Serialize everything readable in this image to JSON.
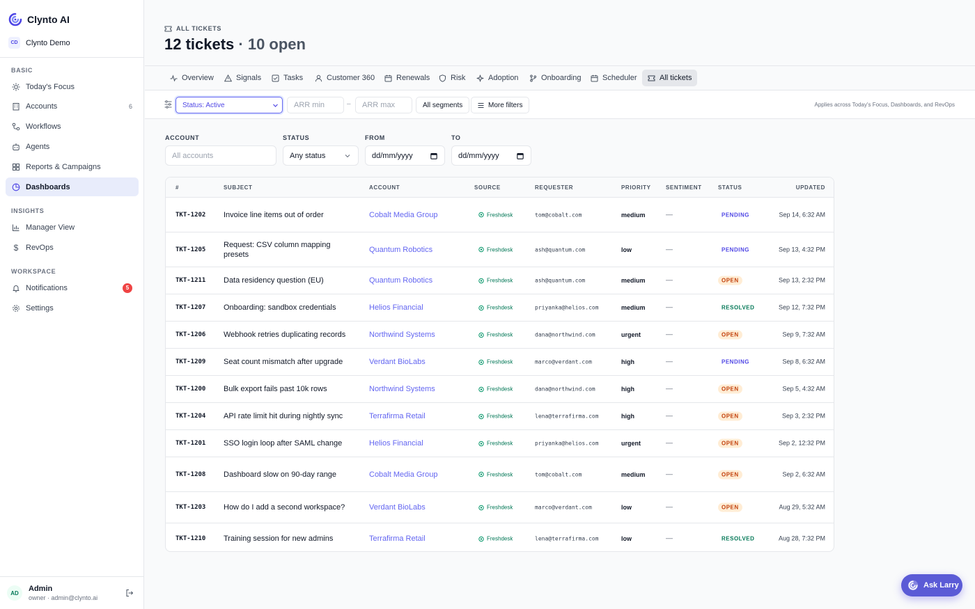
{
  "brand": {
    "name": "Clynto AI"
  },
  "workspace": {
    "initials": "CD",
    "name": "Clynto Demo"
  },
  "sidebar": {
    "sections": {
      "basic": "BASIC",
      "insights": "INSIGHTS",
      "workspace": "WORKSPACE"
    },
    "items": {
      "todays_focus": "Today's Focus",
      "accounts": "Accounts",
      "accounts_count": "6",
      "workflows": "Workflows",
      "agents": "Agents",
      "reports": "Reports & Campaigns",
      "dashboards": "Dashboards",
      "manager_view": "Manager View",
      "revops": "RevOps",
      "notifications": "Notifications",
      "notifications_count": "5",
      "settings": "Settings"
    }
  },
  "user": {
    "initials": "AD",
    "name": "Admin",
    "sub": "owner · admin@clynto.ai"
  },
  "header": {
    "eyebrow": "ALL TICKETS",
    "title_count": "12 tickets",
    "title_open": " · 10 open"
  },
  "tabs": [
    "Overview",
    "Signals",
    "Tasks",
    "Customer 360",
    "Renewals",
    "Risk",
    "Adoption",
    "Onboarding",
    "Scheduler",
    "All tickets"
  ],
  "filterbar": {
    "status": "Status: Active",
    "arr_min": "ARR min",
    "dash": "–",
    "arr_max": "ARR max",
    "segments": "All segments",
    "more": "More filters",
    "note": "Applies across Today's Focus, Dashboards, and RevOps"
  },
  "filters": {
    "account_label": "ACCOUNT",
    "account_placeholder": "All accounts",
    "status_label": "STATUS",
    "status_value": "Any status",
    "from_label": "FROM",
    "from_value": "dd/mm/yyyy",
    "to_label": "TO",
    "to_value": "dd/mm/yyyy"
  },
  "table": {
    "columns": [
      "#",
      "SUBJECT",
      "ACCOUNT",
      "SOURCE",
      "REQUESTER",
      "PRIORITY",
      "SENTIMENT",
      "STATUS",
      "UPDATED"
    ],
    "rows": [
      {
        "id": "TKT-1202",
        "subject": "Invoice line items out of order",
        "account": "Cobalt Media Group",
        "source": "Freshdesk",
        "requester": "tom@cobalt.com",
        "priority": "medium",
        "sentiment": "—",
        "status": "PENDING",
        "updated": "Sep 14, 6:32 AM"
      },
      {
        "id": "TKT-1205",
        "subject": "Request: CSV column mapping presets",
        "account": "Quantum Robotics",
        "source": "Freshdesk",
        "requester": "ash@quantum.com",
        "priority": "low",
        "sentiment": "—",
        "status": "PENDING",
        "updated": "Sep 13, 4:32 PM"
      },
      {
        "id": "TKT-1211",
        "subject": "Data residency question (EU)",
        "account": "Quantum Robotics",
        "source": "Freshdesk",
        "requester": "ash@quantum.com",
        "priority": "medium",
        "sentiment": "—",
        "status": "OPEN",
        "updated": "Sep 13, 2:32 PM"
      },
      {
        "id": "TKT-1207",
        "subject": "Onboarding: sandbox credentials",
        "account": "Helios Financial",
        "source": "Freshdesk",
        "requester": "priyanka@helios.com",
        "priority": "medium",
        "sentiment": "—",
        "status": "RESOLVED",
        "updated": "Sep 12, 7:32 PM"
      },
      {
        "id": "TKT-1206",
        "subject": "Webhook retries duplicating records",
        "account": "Northwind Systems",
        "source": "Freshdesk",
        "requester": "dana@northwind.com",
        "priority": "urgent",
        "sentiment": "—",
        "status": "OPEN",
        "updated": "Sep 9, 7:32 AM"
      },
      {
        "id": "TKT-1209",
        "subject": "Seat count mismatch after upgrade",
        "account": "Verdant BioLabs",
        "source": "Freshdesk",
        "requester": "marco@verdant.com",
        "priority": "high",
        "sentiment": "—",
        "status": "PENDING",
        "updated": "Sep 8, 6:32 AM"
      },
      {
        "id": "TKT-1200",
        "subject": "Bulk export fails past 10k rows",
        "account": "Northwind Systems",
        "source": "Freshdesk",
        "requester": "dana@northwind.com",
        "priority": "high",
        "sentiment": "—",
        "status": "OPEN",
        "updated": "Sep 5, 4:32 AM"
      },
      {
        "id": "TKT-1204",
        "subject": "API rate limit hit during nightly sync",
        "account": "Terrafirma Retail",
        "source": "Freshdesk",
        "requester": "lena@terrafirma.com",
        "priority": "high",
        "sentiment": "—",
        "status": "OPEN",
        "updated": "Sep 3, 2:32 PM"
      },
      {
        "id": "TKT-1201",
        "subject": "SSO login loop after SAML change",
        "account": "Helios Financial",
        "source": "Freshdesk",
        "requester": "priyanka@helios.com",
        "priority": "urgent",
        "sentiment": "—",
        "status": "OPEN",
        "updated": "Sep 2, 12:32 PM"
      },
      {
        "id": "TKT-1208",
        "subject": "Dashboard slow on 90-day range",
        "account": "Cobalt Media Group",
        "source": "Freshdesk",
        "requester": "tom@cobalt.com",
        "priority": "medium",
        "sentiment": "—",
        "status": "OPEN",
        "updated": "Sep 2, 6:32 AM"
      },
      {
        "id": "TKT-1203",
        "subject": "How do I add a second workspace?",
        "account": "Verdant BioLabs",
        "source": "Freshdesk",
        "requester": "marco@verdant.com",
        "priority": "low",
        "sentiment": "—",
        "status": "OPEN",
        "updated": "Aug 29, 5:32 AM"
      },
      {
        "id": "TKT-1210",
        "subject": "Training session for new admins",
        "account": "Terrafirma Retail",
        "source": "Freshdesk",
        "requester": "lena@terrafirma.com",
        "priority": "low",
        "sentiment": "—",
        "status": "RESOLVED",
        "updated": "Aug 28, 7:32 PM"
      }
    ]
  },
  "ask": {
    "label": "Ask Larry"
  },
  "colors": {
    "accent": "#6366f1",
    "open": "#c2410c",
    "pending": "#4f46e5",
    "resolved": "#047857",
    "alert": "#ef4444"
  }
}
